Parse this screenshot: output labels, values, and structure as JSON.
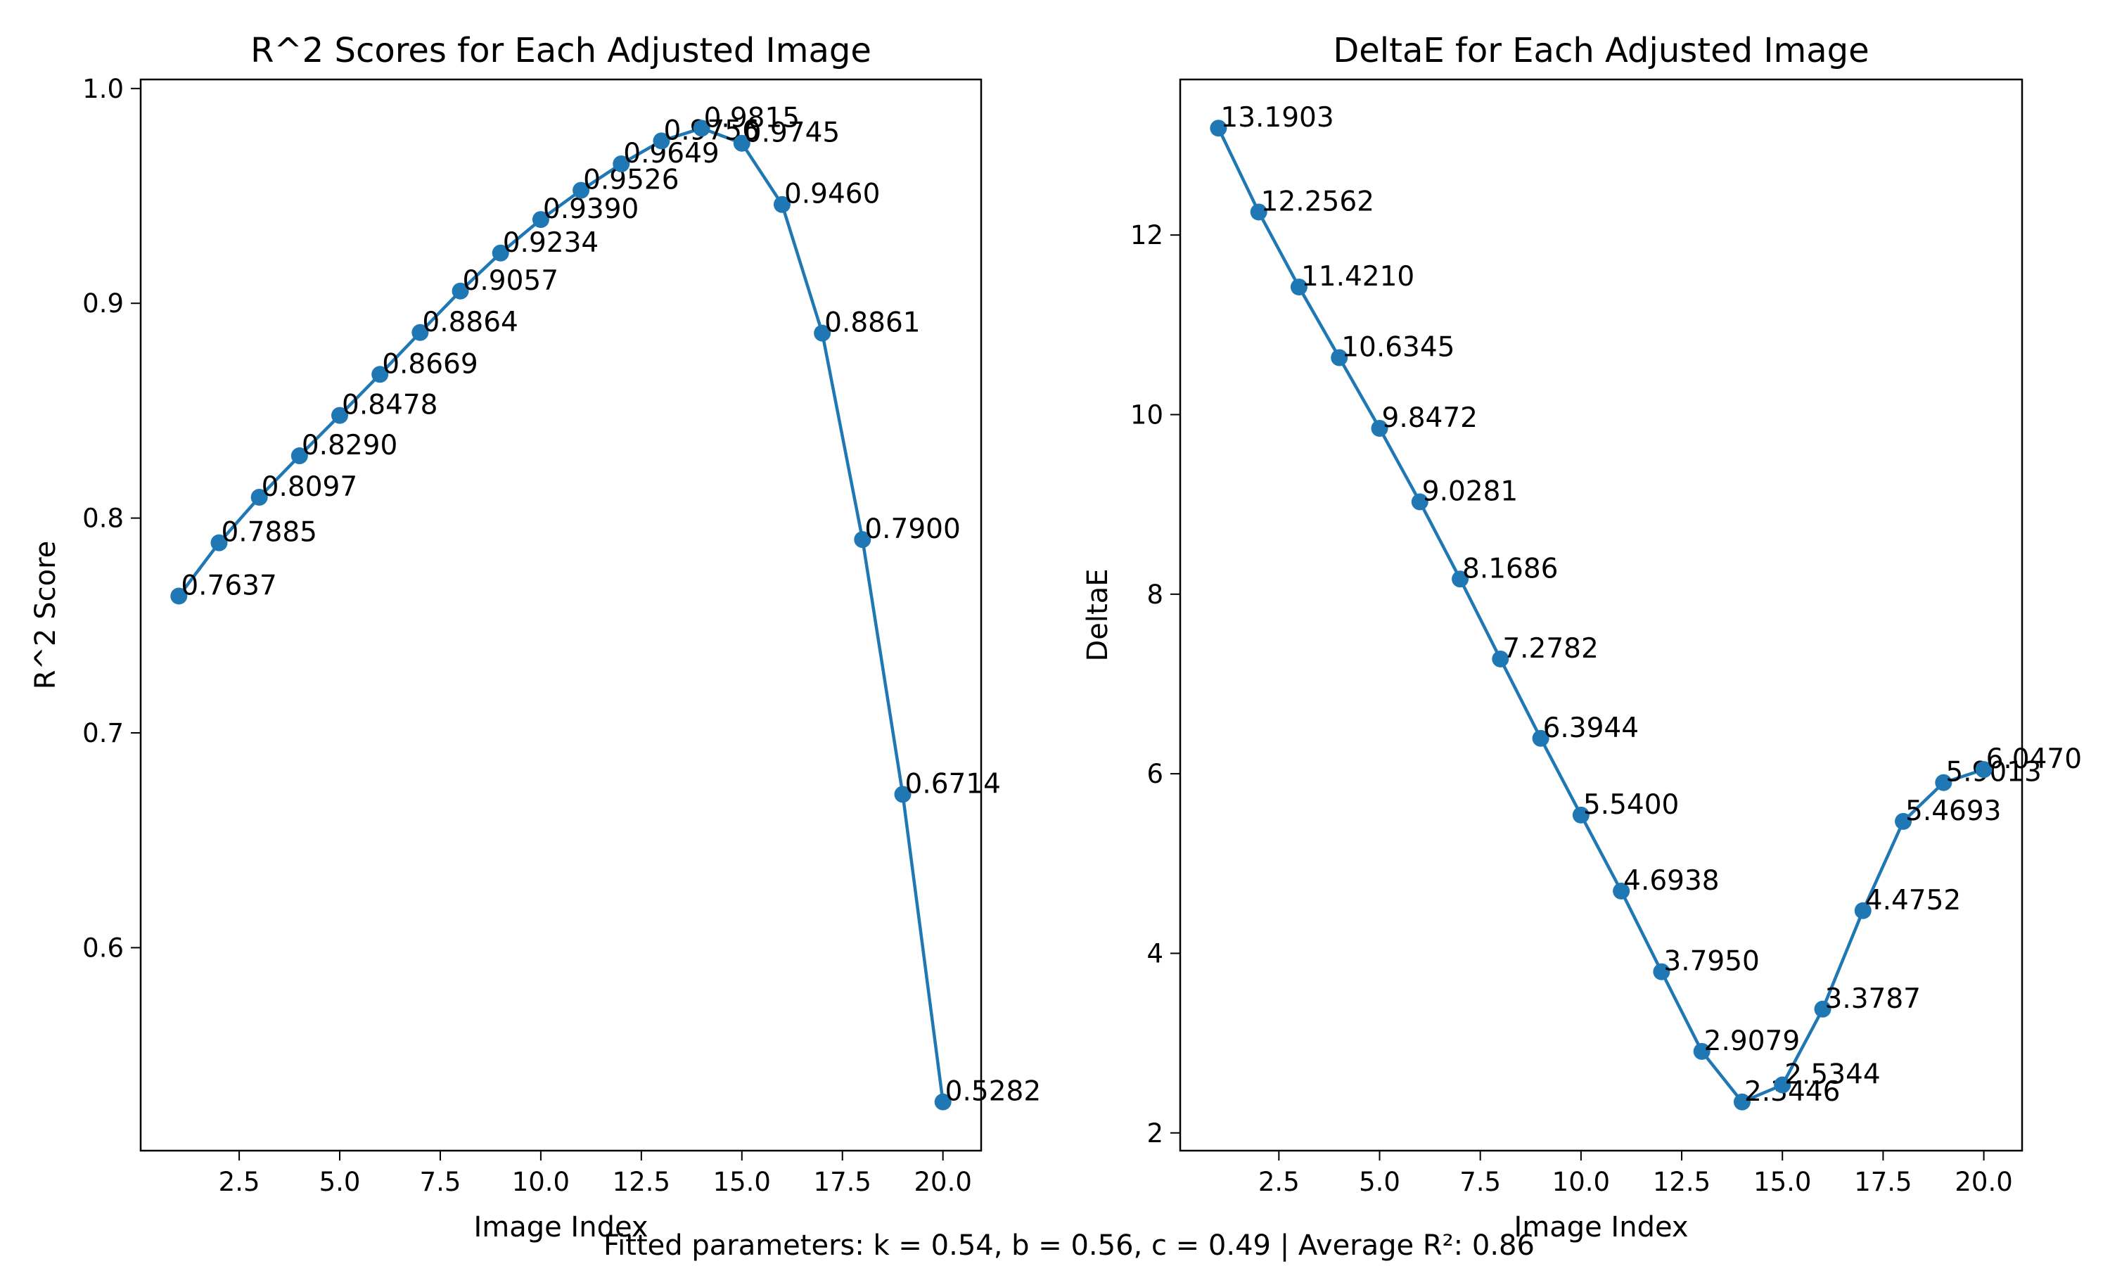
{
  "figure": {
    "footer": "Fitted parameters: k = 0.54, b = 0.56, c = 0.49 | Average R²: 0.86"
  },
  "style": {
    "series_color": "#1f77b4",
    "axes_color": "#000000"
  },
  "chart_data": [
    {
      "type": "line",
      "title": "R^2 Scores for Each Adjusted Image",
      "xlabel": "Image Index",
      "ylabel": "R^2 Score",
      "xlim": [
        0.05,
        20.95
      ],
      "ylim": [
        0.5055,
        1.0042
      ],
      "x_ticks": [
        2.5,
        5.0,
        7.5,
        10.0,
        12.5,
        15.0,
        17.5,
        20.0
      ],
      "x_tick_labels": [
        "2.5",
        "5.0",
        "7.5",
        "10.0",
        "12.5",
        "15.0",
        "17.5",
        "20.0"
      ],
      "y_ticks": [
        0.6,
        0.7,
        0.8,
        0.9,
        1.0
      ],
      "y_tick_labels": [
        "0.6",
        "0.7",
        "0.8",
        "0.9",
        "1.0"
      ],
      "grid": false,
      "marker": "circle",
      "x": [
        1,
        2,
        3,
        4,
        5,
        6,
        7,
        8,
        9,
        10,
        11,
        12,
        13,
        14,
        15,
        16,
        17,
        18,
        19,
        20
      ],
      "values": [
        0.7637,
        0.7885,
        0.8097,
        0.829,
        0.8478,
        0.8669,
        0.8864,
        0.9057,
        0.9234,
        0.939,
        0.9526,
        0.9649,
        0.9756,
        0.9815,
        0.9745,
        0.946,
        0.8861,
        0.79,
        0.6714,
        0.5282
      ],
      "labels": [
        "0.7637",
        "0.7885",
        "0.8097",
        "0.8290",
        "0.8478",
        "0.8669",
        "0.8864",
        "0.9057",
        "0.9234",
        "0.9390",
        "0.9526",
        "0.9649",
        "0.9756",
        "0.9815",
        "0.9745",
        "0.9460",
        "0.8861",
        "0.7900",
        "0.6714",
        "0.5282"
      ]
    },
    {
      "type": "line",
      "title": "DeltaE for Each Adjusted Image",
      "xlabel": "Image Index",
      "ylabel": "DeltaE",
      "xlim": [
        0.05,
        20.95
      ],
      "ylim": [
        1.8023,
        13.7325
      ],
      "x_ticks": [
        2.5,
        5.0,
        7.5,
        10.0,
        12.5,
        15.0,
        17.5,
        20.0
      ],
      "x_tick_labels": [
        "2.5",
        "5.0",
        "7.5",
        "10.0",
        "12.5",
        "15.0",
        "17.5",
        "20.0"
      ],
      "y_ticks": [
        2,
        4,
        6,
        8,
        10,
        12
      ],
      "y_tick_labels": [
        "2",
        "4",
        "6",
        "8",
        "10",
        "12"
      ],
      "grid": false,
      "marker": "circle",
      "x": [
        1,
        2,
        3,
        4,
        5,
        6,
        7,
        8,
        9,
        10,
        11,
        12,
        13,
        14,
        15,
        16,
        17,
        18,
        19,
        20
      ],
      "values": [
        13.1903,
        12.2562,
        11.421,
        10.6345,
        9.8472,
        9.0281,
        8.1686,
        7.2782,
        6.3944,
        5.54,
        4.6938,
        3.795,
        2.9079,
        2.3446,
        2.5344,
        3.3787,
        4.4752,
        5.4693,
        5.9013,
        6.047
      ],
      "labels": [
        "13.1903",
        "12.2562",
        "11.4210",
        "10.6345",
        "9.8472",
        "9.0281",
        "8.1686",
        "7.2782",
        "6.3944",
        "5.5400",
        "4.6938",
        "3.7950",
        "2.9079",
        "2.3446",
        "2.5344",
        "3.3787",
        "4.4752",
        "5.4693",
        "5.9013",
        "6.0470"
      ]
    }
  ]
}
